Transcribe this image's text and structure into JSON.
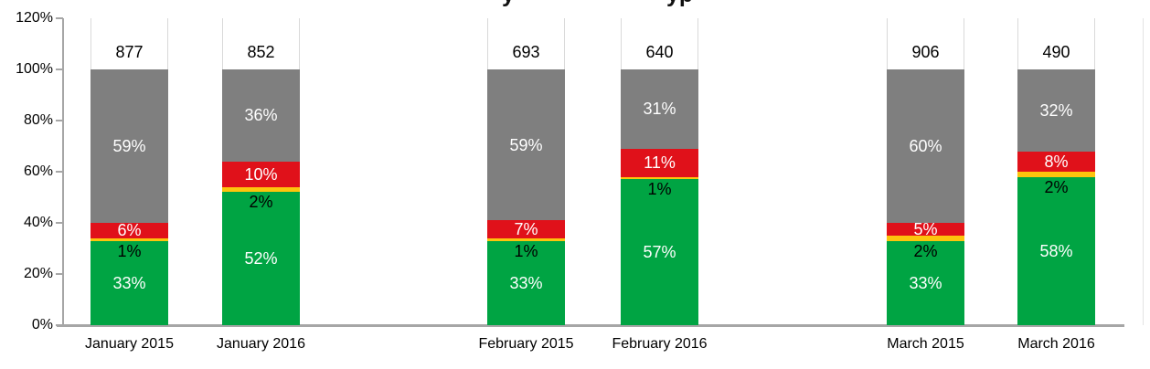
{
  "chart_data": {
    "type": "bar",
    "variant": "stacked-100-percent",
    "title_fragments": [
      "y",
      "yp"
    ],
    "categories": [
      "January 2015",
      "January 2016",
      "February 2015",
      "February 2016",
      "March 2015",
      "March 2016"
    ],
    "totals": [
      877,
      852,
      693,
      640,
      906,
      490
    ],
    "series": [
      {
        "name": "green-bottom-segment",
        "color": "#00a443",
        "label_color": "#ffffff",
        "values": [
          33,
          52,
          33,
          57,
          33,
          58
        ]
      },
      {
        "name": "yellow-segment",
        "color": "#fdc40d",
        "label_color": "#000000",
        "values": [
          1,
          2,
          1,
          1,
          2,
          2
        ]
      },
      {
        "name": "red-segment",
        "color": "#e0111a",
        "label_color": "#ffffff",
        "values": [
          6,
          10,
          7,
          11,
          5,
          8
        ]
      },
      {
        "name": "gray-top-segment",
        "color": "#7f7f7f",
        "label_color": "#ffffff",
        "values": [
          59,
          36,
          59,
          31,
          60,
          32
        ]
      }
    ],
    "y_axis": {
      "min": 0,
      "max": 120,
      "tick_step": 20,
      "tick_labels": [
        "0%",
        "20%",
        "40%",
        "60%",
        "80%",
        "100%",
        "120%"
      ]
    },
    "legend": "none",
    "grid": "off",
    "colors": {
      "axis": "#a6a6a6",
      "cap_fill": "#ffffff",
      "cap_border": "#d9d9d9",
      "label_text": "#000000"
    }
  }
}
